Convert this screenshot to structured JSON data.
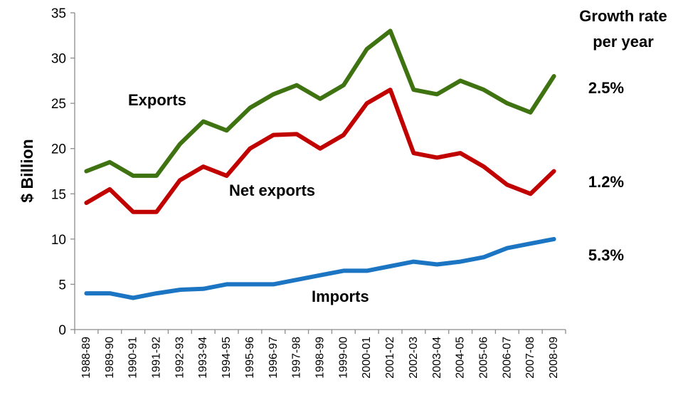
{
  "chart_data": {
    "type": "line",
    "ylabel": "$ Billion",
    "xlabel": "",
    "ylim": [
      0,
      35
    ],
    "yticks": [
      0,
      5,
      10,
      15,
      20,
      25,
      30,
      35
    ],
    "grid": false,
    "categories": [
      "1988-89",
      "1989-90",
      "1990-91",
      "1991-92",
      "1992-93",
      "1993-94",
      "1994-95",
      "1995-96",
      "1996-97",
      "1997-98",
      "1998-99",
      "1999-00",
      "2000-01",
      "2001-02",
      "2002-03",
      "2003-04",
      "2004-05",
      "2005-06",
      "2006-07",
      "2007-08",
      "2008-09"
    ],
    "series": [
      {
        "name": "Exports",
        "color": "#3f7312",
        "values": [
          17.5,
          18.5,
          17,
          17,
          20.5,
          23,
          22,
          24.5,
          26,
          27,
          25.5,
          27,
          31,
          33,
          26.5,
          26,
          27.5,
          26.5,
          25,
          24,
          28
        ]
      },
      {
        "name": "Net exports",
        "color": "#c10000",
        "values": [
          14,
          15.5,
          13,
          13,
          16.5,
          18,
          17,
          20,
          21.5,
          21.6,
          20,
          21.5,
          25,
          26.5,
          19.5,
          19,
          19.5,
          18,
          16,
          15,
          17.5
        ]
      },
      {
        "name": "Imports",
        "color": "#1b75c3",
        "values": [
          4,
          4,
          3.5,
          4,
          4.4,
          4.5,
          5,
          5,
          5,
          5.5,
          6,
          6.5,
          6.5,
          7,
          7.5,
          7.2,
          7.5,
          8,
          9,
          9.5,
          10
        ]
      }
    ],
    "annotations": {
      "growth_header_line1": "Growth rate",
      "growth_header_line2": "per year",
      "growth_exports": "2.5%",
      "growth_net_exports": "1.2%",
      "growth_imports": "5.3%"
    }
  }
}
